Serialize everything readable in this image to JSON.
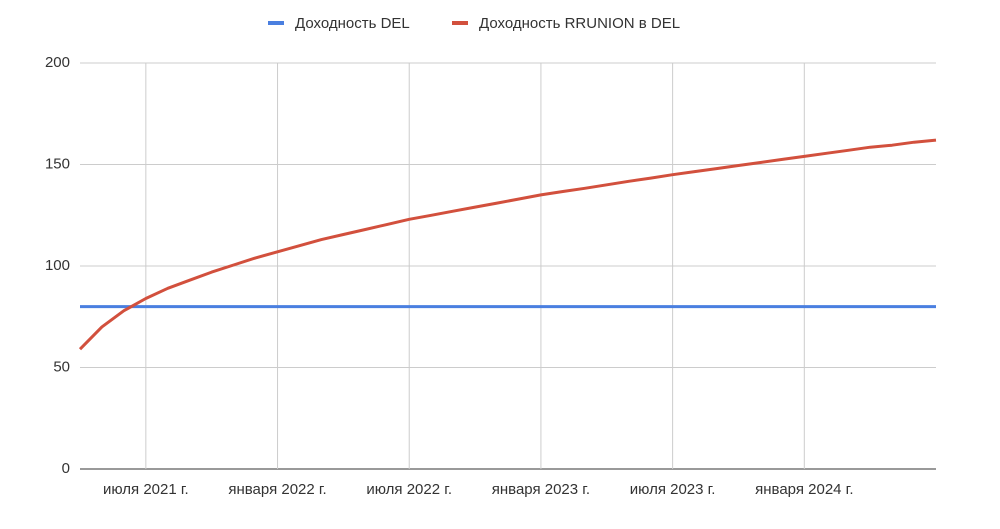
{
  "chart_data": {
    "type": "line",
    "x": [
      "2021-04",
      "2021-05",
      "2021-06",
      "2021-07",
      "2021-08",
      "2021-09",
      "2021-10",
      "2021-11",
      "2021-12",
      "2022-01",
      "2022-02",
      "2022-03",
      "2022-04",
      "2022-05",
      "2022-06",
      "2022-07",
      "2022-08",
      "2022-09",
      "2022-10",
      "2022-11",
      "2022-12",
      "2023-01",
      "2023-02",
      "2023-03",
      "2023-04",
      "2023-05",
      "2023-06",
      "2023-07",
      "2023-08",
      "2023-09",
      "2023-10",
      "2023-11",
      "2023-12",
      "2024-01",
      "2024-02",
      "2024-03",
      "2024-04",
      "2024-05",
      "2024-06",
      "2024-07"
    ],
    "series": [
      {
        "name": "Доходность DEL",
        "color": "#4a7fe0",
        "values": [
          80,
          80,
          80,
          80,
          80,
          80,
          80,
          80,
          80,
          80,
          80,
          80,
          80,
          80,
          80,
          80,
          80,
          80,
          80,
          80,
          80,
          80,
          80,
          80,
          80,
          80,
          80,
          80,
          80,
          80,
          80,
          80,
          80,
          80,
          80,
          80,
          80,
          80,
          80,
          80
        ]
      },
      {
        "name": "Доходность RRUNION в DEL",
        "color": "#d2503d",
        "values": [
          59,
          70,
          78,
          84,
          89,
          93,
          97,
          100.5,
          104,
          107,
          110,
          113,
          115.5,
          118,
          120.5,
          123,
          125,
          127,
          129,
          131,
          133,
          135,
          136.7,
          138.3,
          140,
          141.7,
          143.3,
          145,
          146.5,
          148,
          149.5,
          151,
          152.5,
          154,
          155.5,
          157,
          158.5,
          159.5,
          161,
          162
        ]
      }
    ],
    "xlim": [
      "2021-04",
      "2024-07"
    ],
    "xticks": [
      {
        "value": "2021-07",
        "label": "июля 2021 г."
      },
      {
        "value": "2022-01",
        "label": "января 2022 г."
      },
      {
        "value": "2022-07",
        "label": "июля 2022 г."
      },
      {
        "value": "2023-01",
        "label": "января 2023 г."
      },
      {
        "value": "2023-07",
        "label": "июля 2023 г."
      },
      {
        "value": "2024-01",
        "label": "января 2024 г."
      }
    ],
    "ylim": [
      0,
      200
    ],
    "yticks": [
      0,
      50,
      100,
      150,
      200
    ],
    "grid": true,
    "legend": "top"
  }
}
